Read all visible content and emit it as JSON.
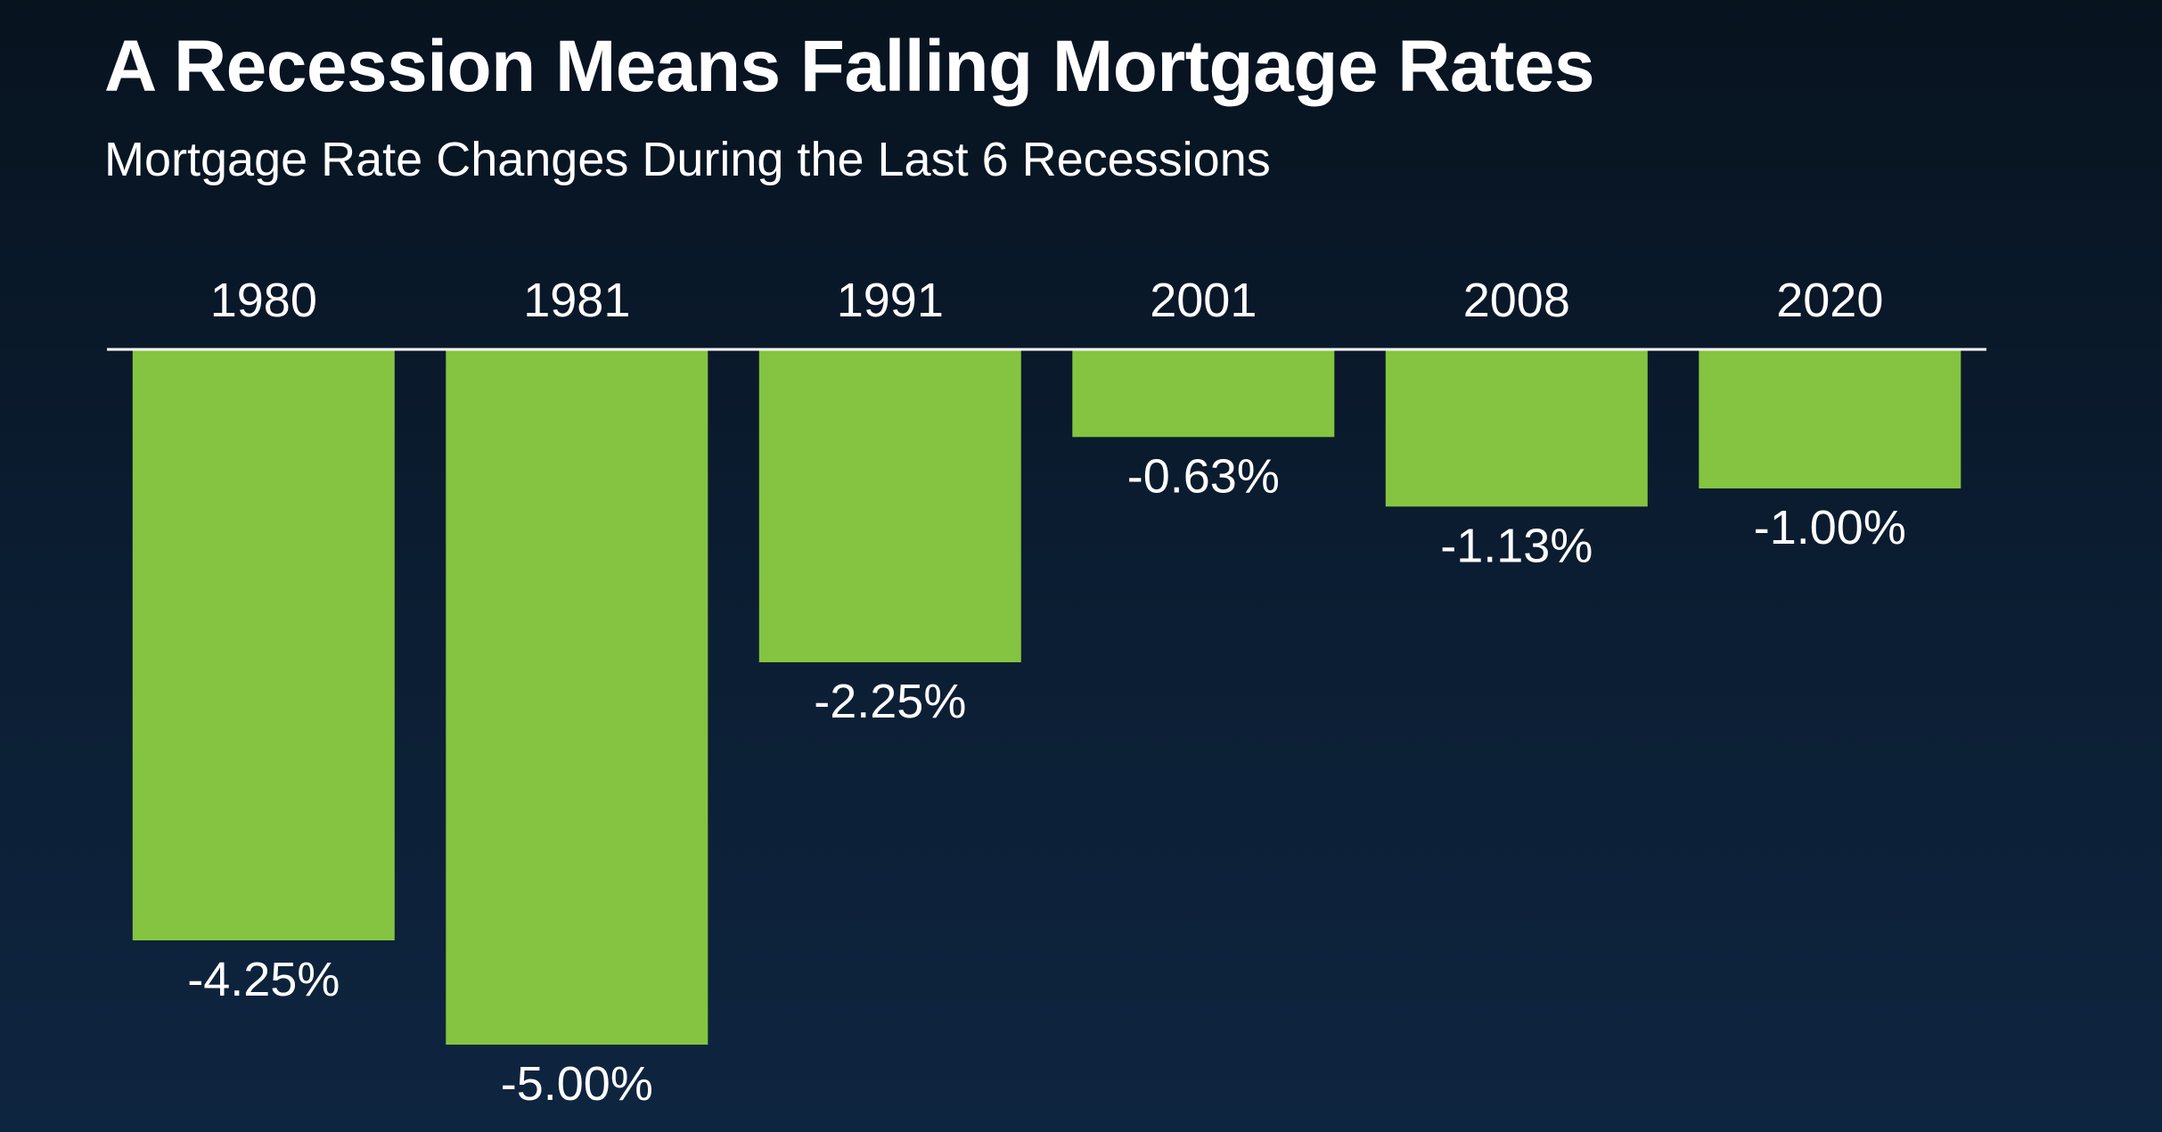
{
  "title": "A Recession Means Falling Mortgage Rates",
  "subtitle": "Mortgage Rate Changes During the Last 6 Recessions",
  "chart_data": {
    "type": "bar",
    "title": "A Recession Means Falling Mortgage Rates",
    "subtitle": "Mortgage Rate Changes During the Last 6 Recessions",
    "categories": [
      "1980",
      "1981",
      "1991",
      "2001",
      "2008",
      "2020"
    ],
    "values": [
      -4.25,
      -5.0,
      -2.25,
      -0.63,
      -1.13,
      -1.0
    ],
    "data_labels": [
      "-4.25%",
      "-5.00%",
      "-2.25%",
      "-0.63%",
      "-1.13%",
      "-1.00%"
    ],
    "xlabel": "",
    "ylabel": "",
    "ylim": [
      -5,
      0
    ],
    "category_axis_position": "top",
    "grid": false,
    "legend": "none"
  },
  "colors": {
    "bar": "#84c441",
    "axis_line": "#ffffff",
    "text": "#ffffff"
  }
}
